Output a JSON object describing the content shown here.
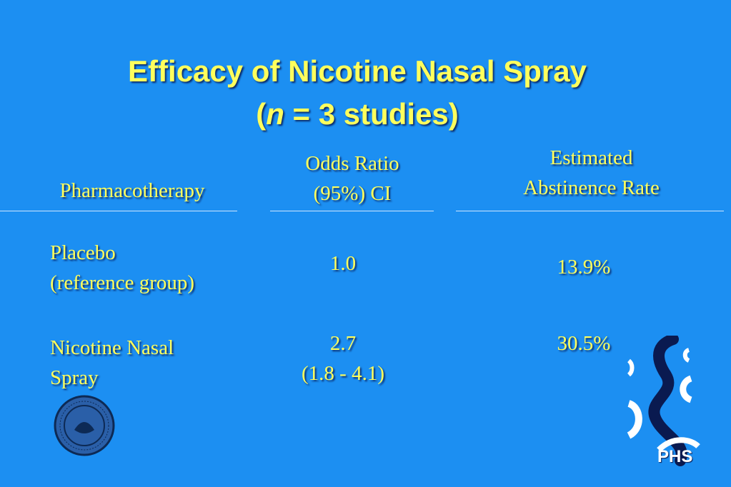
{
  "title": {
    "line1": "Efficacy of Nicotine Nasal Spray",
    "line2": [
      "(",
      "n",
      " = 3 studies)"
    ]
  },
  "table": {
    "headers": [
      [
        "Pharmacotherapy"
      ],
      [
        "Odds Ratio",
        "(95%) CI"
      ],
      [
        "Estimated",
        "Abstinence Rate"
      ]
    ],
    "rows": [
      [
        [
          "Placebo",
          "(reference group)"
        ],
        [
          "1.0"
        ],
        [
          "13.9%"
        ]
      ],
      [
        [
          "Nicotine Nasal",
          "Spray"
        ],
        [
          "2.7",
          "(1.8 - 4.1)"
        ],
        [
          "30.5%"
        ]
      ]
    ]
  },
  "logo": {
    "text": "PHS"
  }
}
